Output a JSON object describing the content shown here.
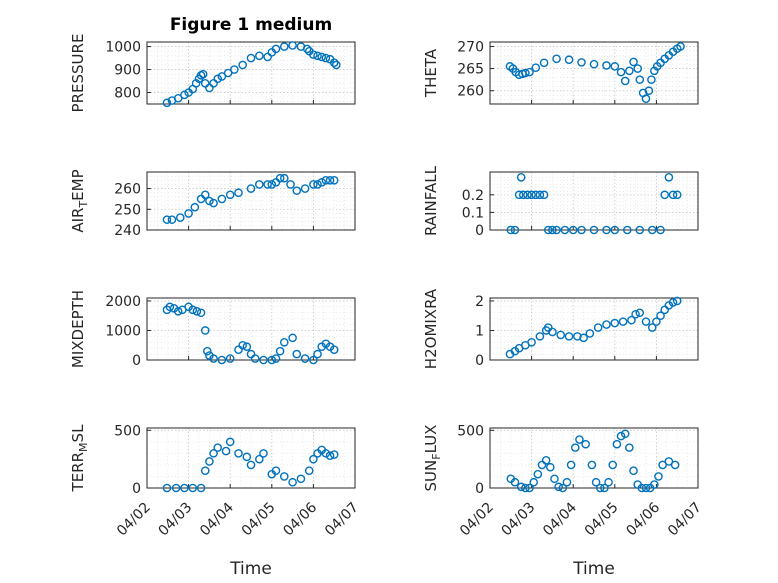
{
  "figure": {
    "title": "Figure 1 medium",
    "xlabel": "Time",
    "marker_color": "#0072BD",
    "grid": "on (major and minor, dotted)"
  },
  "chart_data": [
    {
      "type": "scatter",
      "ylabel": "PRESSURE",
      "ylim": [
        750,
        1020
      ],
      "yticks": [
        800,
        900,
        1000
      ],
      "ytick_labels": [
        "800",
        "900",
        "1000"
      ],
      "xlim": [
        2.0,
        7.0
      ],
      "xticks": [
        2,
        3,
        4,
        5,
        6,
        7
      ],
      "xtick_labels": [
        "04/02",
        "04/03",
        "04/04",
        "04/05",
        "04/06",
        "04/07"
      ],
      "x": [
        2.48,
        2.6,
        2.75,
        2.9,
        3.0,
        3.1,
        3.18,
        3.25,
        3.3,
        3.35,
        3.4,
        3.5,
        3.6,
        3.7,
        3.8,
        3.95,
        4.1,
        4.3,
        4.5,
        4.7,
        4.9,
        5.0,
        5.1,
        5.3,
        5.5,
        5.7,
        5.85,
        5.9,
        6.0,
        6.1,
        6.2,
        6.3,
        6.4,
        6.5,
        6.55
      ],
      "y": [
        755,
        765,
        775,
        790,
        800,
        815,
        840,
        860,
        875,
        880,
        840,
        820,
        840,
        860,
        870,
        885,
        900,
        920,
        950,
        960,
        955,
        975,
        990,
        1000,
        1005,
        1000,
        990,
        980,
        965,
        960,
        955,
        950,
        945,
        930,
        920
      ]
    },
    {
      "type": "scatter",
      "ylabel": "THETA",
      "ylim": [
        257,
        271
      ],
      "yticks": [
        260,
        265,
        270
      ],
      "ytick_labels": [
        "260",
        "265",
        "270"
      ],
      "xlim": [
        2.0,
        7.0
      ],
      "xticks": [
        2,
        3,
        4,
        5,
        6,
        7
      ],
      "xtick_labels": [
        "04/02",
        "04/03",
        "04/04",
        "04/05",
        "04/06",
        "04/07"
      ],
      "x": [
        2.48,
        2.55,
        2.62,
        2.7,
        2.78,
        2.85,
        2.95,
        3.1,
        3.3,
        3.6,
        3.9,
        4.2,
        4.5,
        4.8,
        5.0,
        5.15,
        5.25,
        5.35,
        5.45,
        5.55,
        5.6,
        5.68,
        5.75,
        5.82,
        5.88,
        5.95,
        6.02,
        6.1,
        6.2,
        6.3,
        6.4,
        6.5,
        6.58
      ],
      "y": [
        265.5,
        265.0,
        264.2,
        263.6,
        263.8,
        264.0,
        264.2,
        265.2,
        266.3,
        267.2,
        267.0,
        266.4,
        266.0,
        265.7,
        265.5,
        264.2,
        262.2,
        264.5,
        266.5,
        265.0,
        262.5,
        259.5,
        258.2,
        260.0,
        262.5,
        264.5,
        265.5,
        266.3,
        267.2,
        268.0,
        268.8,
        269.5,
        270.0
      ]
    },
    {
      "type": "scatter",
      "ylabel": "AIR_TEMP",
      "ylim": [
        240,
        268
      ],
      "yticks": [
        240,
        250,
        260
      ],
      "ytick_labels": [
        "240",
        "250",
        "260"
      ],
      "xlim": [
        2.0,
        7.0
      ],
      "xticks": [
        2,
        3,
        4,
        5,
        6,
        7
      ],
      "xtick_labels": [
        "04/02",
        "04/03",
        "04/04",
        "04/05",
        "04/06",
        "04/07"
      ],
      "x": [
        2.48,
        2.6,
        2.8,
        3.0,
        3.15,
        3.3,
        3.4,
        3.5,
        3.6,
        3.8,
        4.0,
        4.2,
        4.5,
        4.7,
        4.9,
        5.0,
        5.1,
        5.2,
        5.3,
        5.45,
        5.6,
        5.8,
        6.0,
        6.1,
        6.2,
        6.3,
        6.4,
        6.5
      ],
      "y": [
        245,
        245,
        246,
        248,
        251,
        255,
        257,
        254,
        253,
        255,
        257,
        258,
        260,
        262,
        262,
        262,
        263,
        265,
        265,
        262,
        259,
        260,
        262,
        262,
        263,
        264,
        264,
        264
      ]
    },
    {
      "type": "scatter",
      "ylabel": "RAINFALL",
      "ylim": [
        0,
        0.33
      ],
      "yticks": [
        0,
        0.1,
        0.2
      ],
      "ytick_labels": [
        "0",
        "0.1",
        "0.2"
      ],
      "xlim": [
        2.0,
        7.0
      ],
      "xticks": [
        2,
        3,
        4,
        5,
        6,
        7
      ],
      "xtick_labels": [
        "04/02",
        "04/03",
        "04/04",
        "04/05",
        "04/06",
        "04/07"
      ],
      "x": [
        2.5,
        2.6,
        2.7,
        2.75,
        2.8,
        2.9,
        3.0,
        3.1,
        3.2,
        3.3,
        3.4,
        3.5,
        3.6,
        3.8,
        4.0,
        4.2,
        4.5,
        4.8,
        5.0,
        5.3,
        5.6,
        5.9,
        6.1,
        6.2,
        6.3,
        6.4,
        6.5
      ],
      "y": [
        0,
        0,
        0.2,
        0.3,
        0.2,
        0.2,
        0.2,
        0.2,
        0.2,
        0.2,
        0,
        0,
        0,
        0,
        0,
        0,
        0,
        0,
        0,
        0,
        0,
        0,
        0,
        0.2,
        0.3,
        0.2,
        0.2
      ]
    },
    {
      "type": "scatter",
      "ylabel": "MIXDEPTH",
      "ylim": [
        0,
        2100
      ],
      "yticks": [
        0,
        1000,
        2000
      ],
      "ytick_labels": [
        "0",
        "1000",
        "2000"
      ],
      "xlim": [
        2.0,
        7.0
      ],
      "xticks": [
        2,
        3,
        4,
        5,
        6,
        7
      ],
      "xtick_labels": [
        "04/02",
        "04/03",
        "04/04",
        "04/05",
        "04/06",
        "04/07"
      ],
      "x": [
        2.48,
        2.55,
        2.65,
        2.75,
        2.85,
        3.0,
        3.1,
        3.2,
        3.3,
        3.4,
        3.45,
        3.5,
        3.6,
        3.8,
        4.0,
        4.2,
        4.3,
        4.4,
        4.5,
        4.6,
        4.8,
        5.0,
        5.1,
        5.2,
        5.3,
        5.5,
        5.6,
        5.8,
        6.0,
        6.1,
        6.2,
        6.3,
        6.4,
        6.5
      ],
      "y": [
        1700,
        1800,
        1750,
        1650,
        1700,
        1800,
        1700,
        1650,
        1600,
        1000,
        300,
        150,
        50,
        0,
        50,
        350,
        500,
        450,
        200,
        50,
        0,
        0,
        50,
        300,
        600,
        750,
        200,
        50,
        0,
        200,
        450,
        550,
        450,
        350
      ]
    },
    {
      "type": "scatter",
      "ylabel": "H2OMIXRA",
      "ylim": [
        0,
        2.1
      ],
      "yticks": [
        0,
        1,
        2
      ],
      "ytick_labels": [
        "0",
        "1",
        "2"
      ],
      "xlim": [
        2.0,
        7.0
      ],
      "xticks": [
        2,
        3,
        4,
        5,
        6,
        7
      ],
      "xtick_labels": [
        "04/02",
        "04/03",
        "04/04",
        "04/05",
        "04/06",
        "04/07"
      ],
      "x": [
        2.48,
        2.6,
        2.7,
        2.85,
        3.0,
        3.2,
        3.35,
        3.4,
        3.5,
        3.7,
        3.9,
        4.1,
        4.25,
        4.4,
        4.6,
        4.8,
        5.0,
        5.2,
        5.4,
        5.5,
        5.6,
        5.75,
        5.9,
        6.0,
        6.1,
        6.2,
        6.3,
        6.4,
        6.5
      ],
      "y": [
        0.2,
        0.3,
        0.4,
        0.5,
        0.6,
        0.8,
        1.0,
        1.1,
        0.95,
        0.85,
        0.8,
        0.8,
        0.75,
        0.9,
        1.1,
        1.2,
        1.25,
        1.3,
        1.35,
        1.55,
        1.6,
        1.3,
        1.1,
        1.3,
        1.5,
        1.7,
        1.85,
        1.95,
        2.0
      ]
    },
    {
      "type": "scatter",
      "ylabel": "TERR_MSL",
      "ylim": [
        0,
        520
      ],
      "yticks": [
        0,
        500
      ],
      "ytick_labels": [
        "0",
        "500"
      ],
      "xlim": [
        2.0,
        7.0
      ],
      "xticks": [
        2,
        3,
        4,
        5,
        6,
        7
      ],
      "xtick_labels": [
        "04/02",
        "04/03",
        "04/04",
        "04/05",
        "04/06",
        "04/07"
      ],
      "x": [
        2.48,
        2.7,
        2.9,
        3.1,
        3.3,
        3.4,
        3.5,
        3.6,
        3.7,
        3.9,
        4.0,
        4.2,
        4.4,
        4.5,
        4.7,
        4.8,
        5.0,
        5.1,
        5.3,
        5.5,
        5.7,
        5.9,
        6.0,
        6.1,
        6.2,
        6.3,
        6.4,
        6.5
      ],
      "y": [
        0,
        0,
        0,
        0,
        0,
        150,
        230,
        300,
        350,
        320,
        400,
        300,
        270,
        200,
        250,
        300,
        120,
        150,
        100,
        50,
        80,
        150,
        250,
        300,
        330,
        300,
        280,
        290
      ]
    },
    {
      "type": "scatter",
      "ylabel": "SUN_FLUX",
      "ylim": [
        0,
        520
      ],
      "yticks": [
        0,
        500
      ],
      "ytick_labels": [
        "0",
        "500"
      ],
      "xlim": [
        2.0,
        7.0
      ],
      "xticks": [
        2,
        3,
        4,
        5,
        6,
        7
      ],
      "xtick_labels": [
        "04/02",
        "04/03",
        "04/04",
        "04/05",
        "04/06",
        "04/07"
      ],
      "x": [
        2.5,
        2.6,
        2.75,
        2.85,
        2.95,
        3.05,
        3.15,
        3.25,
        3.35,
        3.45,
        3.55,
        3.65,
        3.75,
        3.85,
        3.95,
        4.05,
        4.15,
        4.3,
        4.45,
        4.55,
        4.65,
        4.75,
        4.85,
        4.95,
        5.05,
        5.15,
        5.25,
        5.35,
        5.45,
        5.55,
        5.65,
        5.75,
        5.85,
        5.95,
        6.05,
        6.15,
        6.3,
        6.45
      ],
      "y": [
        80,
        50,
        10,
        0,
        0,
        50,
        120,
        200,
        240,
        180,
        80,
        10,
        0,
        50,
        200,
        350,
        420,
        380,
        200,
        50,
        0,
        0,
        50,
        200,
        380,
        450,
        470,
        350,
        150,
        30,
        0,
        0,
        0,
        30,
        100,
        200,
        230,
        200
      ]
    }
  ]
}
